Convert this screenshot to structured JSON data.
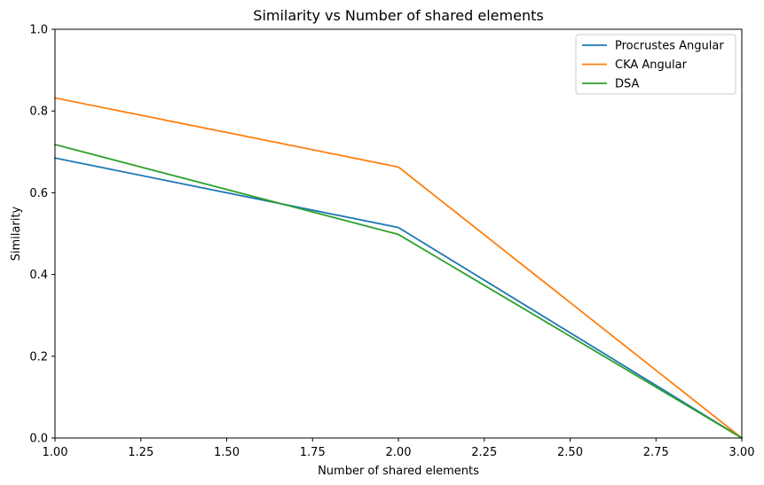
{
  "chart_data": {
    "type": "line",
    "title": "Similarity vs Number of shared elements",
    "xlabel": "Number of shared elements",
    "ylabel": "Similarity",
    "xlim": [
      1.0,
      3.0
    ],
    "ylim": [
      0.0,
      1.0
    ],
    "x_ticks": [
      "1.00",
      "1.25",
      "1.50",
      "1.75",
      "2.00",
      "2.25",
      "2.50",
      "2.75",
      "3.00"
    ],
    "y_ticks": [
      "0.0",
      "0.2",
      "0.4",
      "0.6",
      "0.8",
      "1.0"
    ],
    "x": [
      1,
      2,
      3
    ],
    "series": [
      {
        "name": "Procrustes Angular",
        "color": "#1f77b4",
        "values": [
          0.685,
          0.515,
          0.0
        ]
      },
      {
        "name": "CKA Angular",
        "color": "#ff7f0e",
        "values": [
          0.832,
          0.663,
          0.0
        ]
      },
      {
        "name": "DSA",
        "color": "#2ca02c",
        "values": [
          0.718,
          0.498,
          0.0
        ]
      }
    ],
    "grid": false,
    "legend_position": "top-right"
  }
}
